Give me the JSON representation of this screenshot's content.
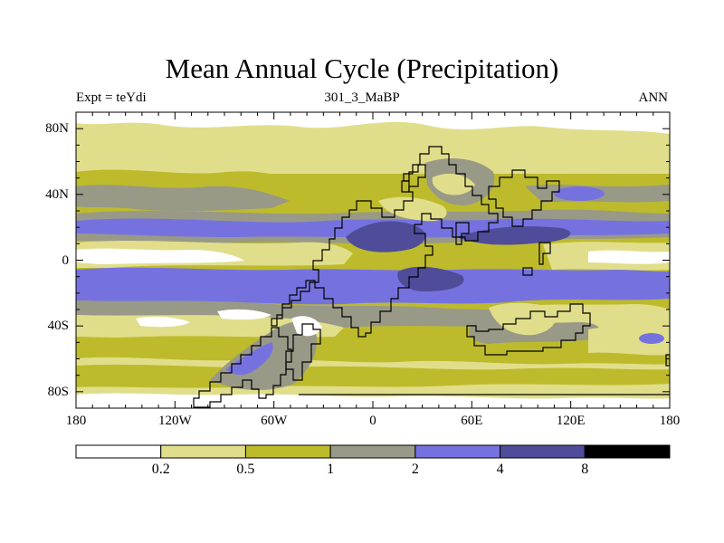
{
  "header": {
    "title": "Mean Annual Cycle (Precipitation)",
    "left_label": "Expt = teYdi",
    "center_label": "301_3_MaBP",
    "right_label": "ANN"
  },
  "axes": {
    "lat_ticks": [
      {
        "value": 80,
        "label": "80N"
      },
      {
        "value": 40,
        "label": "40N"
      },
      {
        "value": 0,
        "label": "0"
      },
      {
        "value": -40,
        "label": "40S"
      },
      {
        "value": -80,
        "label": "80S"
      }
    ],
    "lon_ticks": [
      {
        "value": -180,
        "label": "180"
      },
      {
        "value": -120,
        "label": "120W"
      },
      {
        "value": -60,
        "label": "60W"
      },
      {
        "value": 0,
        "label": "0"
      },
      {
        "value": 60,
        "label": "60E"
      },
      {
        "value": 120,
        "label": "120E"
      },
      {
        "value": 180,
        "label": "180"
      }
    ]
  },
  "colorbar": {
    "levels": [
      "0.2",
      "0.5",
      "1",
      "2",
      "4",
      "8"
    ],
    "colors": [
      "#ffffff",
      "#e1de8b",
      "#bdbb2b",
      "#999987",
      "#7572e0",
      "#4f4c9a",
      "#000000"
    ]
  },
  "colors": {
    "white": "#ffffff",
    "pale": "#e1de8b",
    "olive": "#bdbb2b",
    "gray": "#999987",
    "blue": "#7572e0",
    "navy": "#4f4c9a",
    "coast": "#000000"
  }
}
